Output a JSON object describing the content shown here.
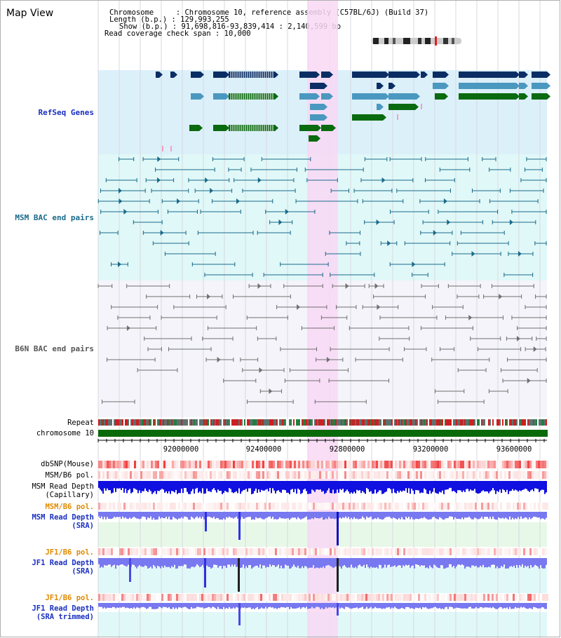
{
  "view_title": "Map View",
  "info": {
    "line1": "Chromosome     : Chromosome 10, reference assembly (C57BL/6J) (Build 37)",
    "line2": "Length (b.p.) : 129,993,255",
    "line3": "Show (b.p.) : 91,698,816-93,839,414 : 2,140,599 bp",
    "line4": "Read coverage check span : 10,000"
  },
  "tracks": {
    "refseq": "RefSeq Genes",
    "msm_bac": "MSM BAC end pairs",
    "b6n_bac": "B6N BAC end pairs",
    "repeat": "Repeat",
    "chromosome": "chromosome 10",
    "dbsnp": "dbSNP(Mouse)",
    "msm_b6_pol_1": "MSM/B6 pol.",
    "msm_depth_cap_1": "MSM Read Depth",
    "msm_depth_cap_2": "(Capillary)",
    "msm_b6_pol_2": "MSM/B6 pol.",
    "msm_depth_sra_1": "MSM Read Depth",
    "msm_depth_sra_2": "(SRA)",
    "jf1_b6_pol_1": "JF1/B6 pol.",
    "jf1_depth_sra_1": "JF1 Read Depth",
    "jf1_depth_sra_2": "(SRA)",
    "jf1_b6_pol_2": "JF1/B6 pol.",
    "jf1_depth_trim_1": "JF1 Read Depth",
    "jf1_depth_trim_2": "(SRA trimmed)"
  },
  "axis": {
    "ticks": [
      "92000000",
      "92400000",
      "92800000",
      "93200000",
      "93600000"
    ]
  },
  "colors": {
    "refseq_bg": "#dcf0fa",
    "msm_bg": "#e0f8f8",
    "b6n_bg": "#f4f4fa",
    "highlight": "#f8d8f4",
    "gene_dark": "#0a2e64",
    "gene_mid": "#4a98c0",
    "gene_green": "#0a6a10",
    "msm_bac": "#1a6a8a",
    "b6n_bac": "#707070",
    "chrom_bar": "#0a6a0a",
    "depth_blue": "#1010e0",
    "depth_light": "#7878f0",
    "label_blue": "#1a30c0",
    "label_orange": "#e08a00"
  }
}
